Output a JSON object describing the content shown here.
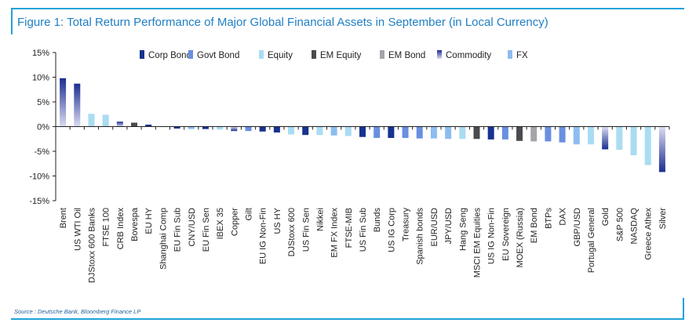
{
  "title": "Figure 1: Total Return Performance of Major Global Financial Assets in September (in Local Currency)",
  "source": "Source : Deutsche Bank, Bloomberg Finance LP",
  "colors": {
    "frame": "#1fa3d8",
    "Corp Bond": "#16338e",
    "Govt Bond": "#6a8fe0",
    "Equity": "#a9dcf2",
    "EM Equity": "#4b4b4f",
    "EM Bond": "#a4a4ab",
    "Commodity": "#1b2d8f",
    "FX": "#8dbdf0"
  },
  "chart_data": {
    "type": "bar",
    "title": "Figure 1: Total Return Performance of Major Global Financial Assets in September (in Local Currency)",
    "xlabel": "",
    "ylabel": "",
    "ylim": [
      -15,
      15
    ],
    "yticks": [
      15,
      10,
      5,
      0,
      -5,
      -10,
      -15
    ],
    "ytick_labels": [
      "15%",
      "10%",
      "5%",
      "0%",
      "-5%",
      "-10%",
      "-15%"
    ],
    "grid": false,
    "legend": {
      "position": "top",
      "entries": [
        "Corp Bond",
        "Govt Bond",
        "Equity",
        "EM Equity",
        "EM Bond",
        "Commodity",
        "FX"
      ]
    },
    "categories": [
      "Brent",
      "US WTI Oil",
      "DJStoxx 600 Banks",
      "FTSE 100",
      "CRB Index",
      "Bovespa",
      "EU HY",
      "Shanghai Comp",
      "EU Fin Sub",
      "CNY/USD",
      "EU Fin Sen",
      "IBEX 35",
      "Copper",
      "Gilt",
      "EU IG Non-Fin",
      "US HY",
      "DJStoxx 600",
      "US Fin Sen",
      "Nikkei",
      "EM FX Index",
      "FTSE-MIB",
      "US Fin Sub",
      "Bunds",
      "US IG Corp",
      "Treasury",
      "Spanish bonds",
      "EUR/USD",
      "JPY/USD",
      "Hang Seng",
      "MSCI EM Equities",
      "US IG Non-Fin",
      "EU Sovereign",
      "MOEX (Russia)",
      "EM Bond",
      "BTPs",
      "DAX",
      "GBP/USD",
      "Portugal General",
      "Gold",
      "S&P 500",
      "NASDAQ",
      "Greece Athex",
      "Silver"
    ],
    "values": [
      9.8,
      8.7,
      2.6,
      2.4,
      1.0,
      0.8,
      0.4,
      0.0,
      -0.4,
      -0.5,
      -0.5,
      -0.6,
      -0.9,
      -0.9,
      -1.0,
      -1.2,
      -1.6,
      -1.7,
      -1.7,
      -1.8,
      -1.9,
      -2.1,
      -2.3,
      -2.3,
      -2.3,
      -2.4,
      -2.4,
      -2.5,
      -2.5,
      -2.5,
      -2.6,
      -2.6,
      -2.9,
      -3.0,
      -3.0,
      -3.2,
      -3.6,
      -3.6,
      -4.6,
      -4.7,
      -5.8,
      -7.8,
      -9.2
    ],
    "asset_classes": [
      "Commodity",
      "Commodity",
      "Equity",
      "Equity",
      "Commodity",
      "EM Equity",
      "Corp Bond",
      "Equity",
      "Corp Bond",
      "FX",
      "Corp Bond",
      "Equity",
      "Commodity",
      "Govt Bond",
      "Corp Bond",
      "Corp Bond",
      "Equity",
      "Corp Bond",
      "Equity",
      "FX",
      "Equity",
      "Corp Bond",
      "Govt Bond",
      "Corp Bond",
      "Govt Bond",
      "Govt Bond",
      "FX",
      "FX",
      "Equity",
      "EM Equity",
      "Corp Bond",
      "Govt Bond",
      "EM Equity",
      "EM Bond",
      "Govt Bond",
      "Govt Bond",
      "FX",
      "Equity",
      "Commodity",
      "Equity",
      "Equity",
      "Equity",
      "Commodity"
    ]
  }
}
